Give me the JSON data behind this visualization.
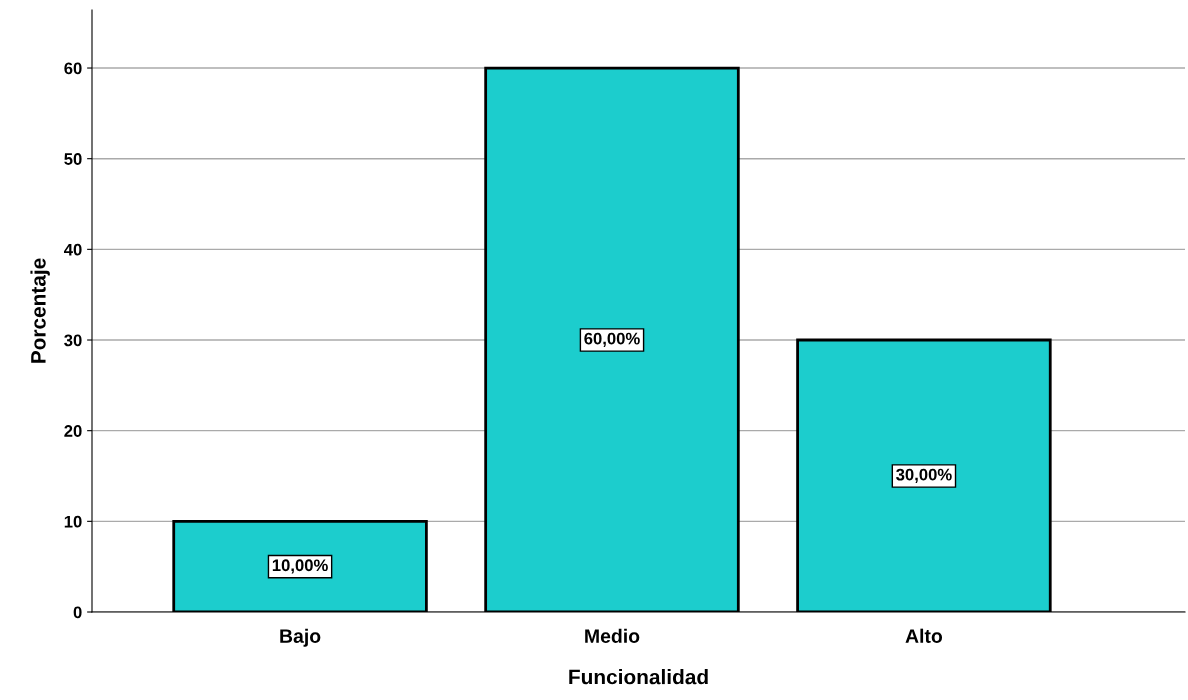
{
  "chart_data": {
    "type": "bar",
    "xlabel": "Funcionalidad",
    "ylabel": "Porcentaje",
    "categories": [
      "Bajo",
      "Medio",
      "Alto"
    ],
    "values": [
      10,
      60,
      30
    ],
    "value_labels": [
      "10,00%",
      "60,00%",
      "30,00%"
    ],
    "color": "#1ccdcd",
    "ylim": [
      0,
      66.4
    ],
    "yticks": [
      0,
      10,
      20,
      30,
      40,
      50,
      60
    ],
    "grid": "y",
    "legend": false
  }
}
